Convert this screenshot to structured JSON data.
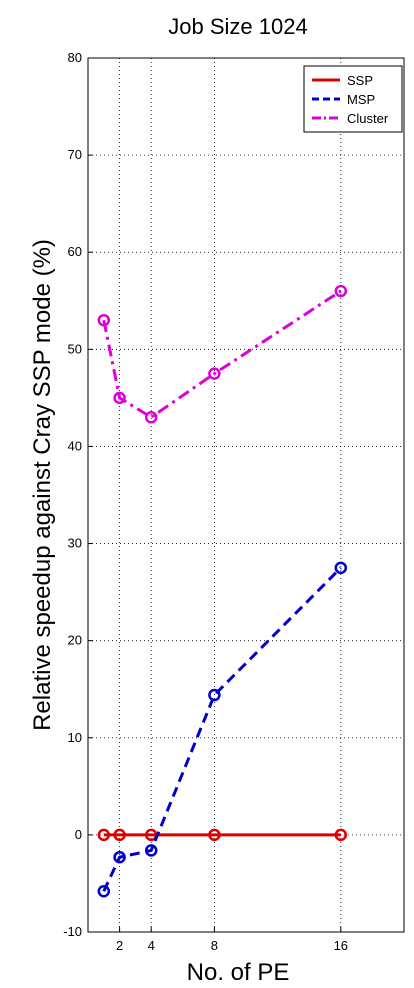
{
  "chart_data": {
    "type": "line",
    "title": "Job Size 1024",
    "xlabel": "No. of PE",
    "ylabel": "Relative speedup against Cray SSP mode (%)",
    "xlim": [
      0,
      20
    ],
    "ylim": [
      -10,
      80
    ],
    "xticks": [
      2,
      4,
      8,
      16
    ],
    "yticks": [
      -10,
      0,
      10,
      20,
      30,
      40,
      50,
      60,
      70,
      80
    ],
    "grid": true,
    "legend": {
      "placement": "top-right"
    },
    "series": [
      {
        "name": "SSP",
        "color": "#dd0000",
        "dash": "solid",
        "x": [
          1,
          2,
          4,
          8,
          16
        ],
        "y": [
          0,
          0,
          0,
          0,
          0
        ]
      },
      {
        "name": "MSP",
        "color": "#0000cc",
        "dash": "dashed",
        "x": [
          1,
          2,
          4,
          8,
          16
        ],
        "y": [
          -5.8,
          -2.3,
          -1.6,
          14.4,
          27.5
        ]
      },
      {
        "name": "Cluster",
        "color": "#dd00dd",
        "dash": "dashdot",
        "x": [
          1,
          2,
          4,
          8,
          16
        ],
        "y": [
          53,
          45,
          43,
          47.5,
          56
        ]
      }
    ]
  }
}
